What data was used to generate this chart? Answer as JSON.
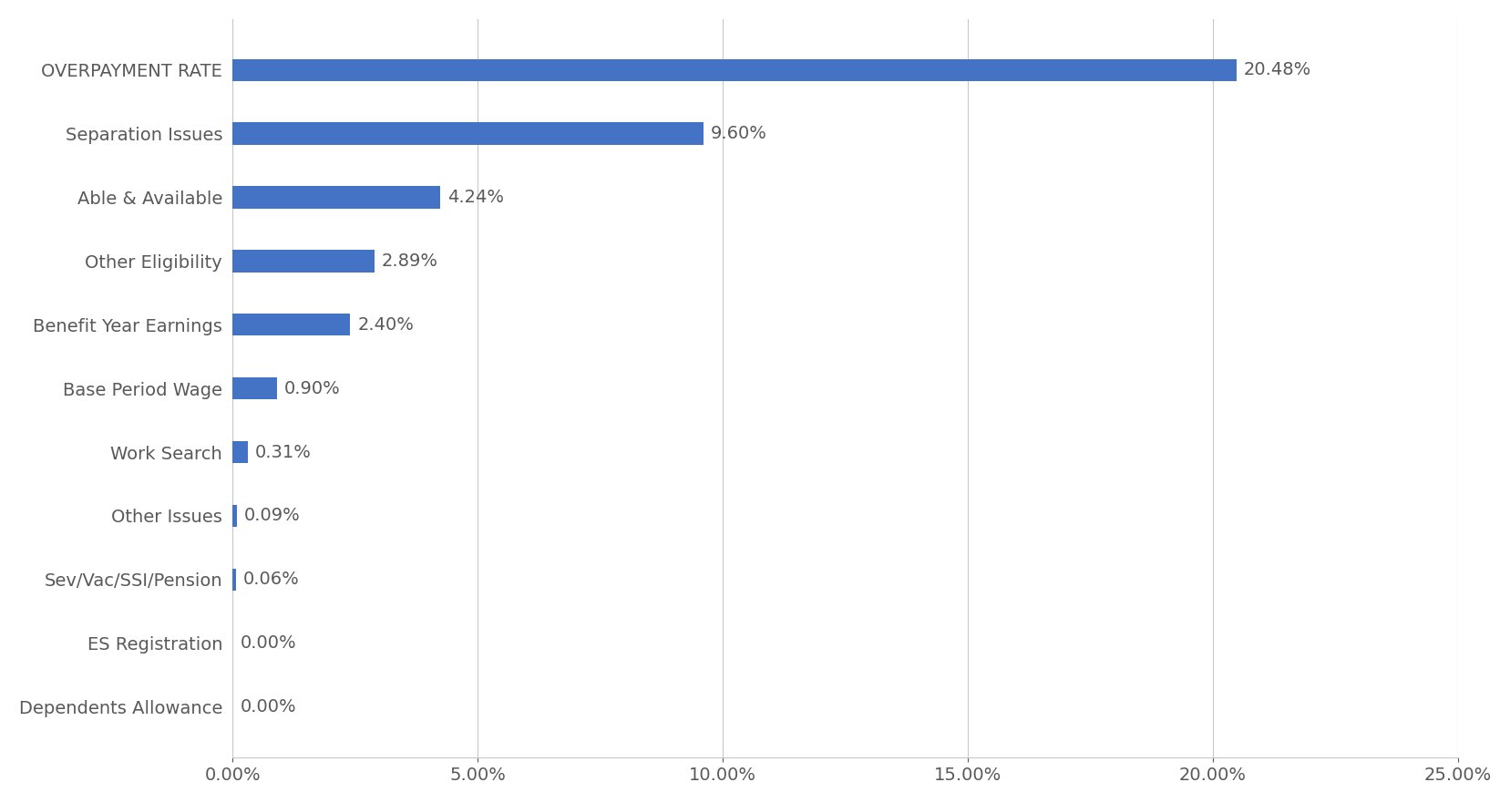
{
  "categories": [
    "Dependents Allowance",
    "ES Registration",
    "Sev/Vac/SSI/Pension",
    "Other Issues",
    "Work Search",
    "Base Period Wage",
    "Benefit Year Earnings",
    "Other Eligibility",
    "Able & Available",
    "Separation Issues",
    "OVERPAYMENT RATE"
  ],
  "values": [
    0.0,
    0.0,
    0.06,
    0.09,
    0.31,
    0.9,
    2.4,
    2.89,
    4.24,
    9.6,
    20.48
  ],
  "labels": [
    "0.00%",
    "0.00%",
    "0.06%",
    "0.09%",
    "0.31%",
    "0.90%",
    "2.40%",
    "2.89%",
    "4.24%",
    "9.60%",
    "20.48%"
  ],
  "bar_color": "#4472C4",
  "background_color": "#ffffff",
  "gridline_color": "#c8c8c8",
  "text_color": "#595959",
  "xlim": [
    0,
    25
  ],
  "xticks": [
    0,
    5,
    10,
    15,
    20,
    25
  ],
  "xtick_labels": [
    "0.00%",
    "5.00%",
    "10.00%",
    "15.00%",
    "20.00%",
    "25.00%"
  ],
  "label_fontsize": 14,
  "tick_fontsize": 14,
  "bar_height": 0.35,
  "figsize": [
    16.58,
    8.81
  ],
  "dpi": 100
}
